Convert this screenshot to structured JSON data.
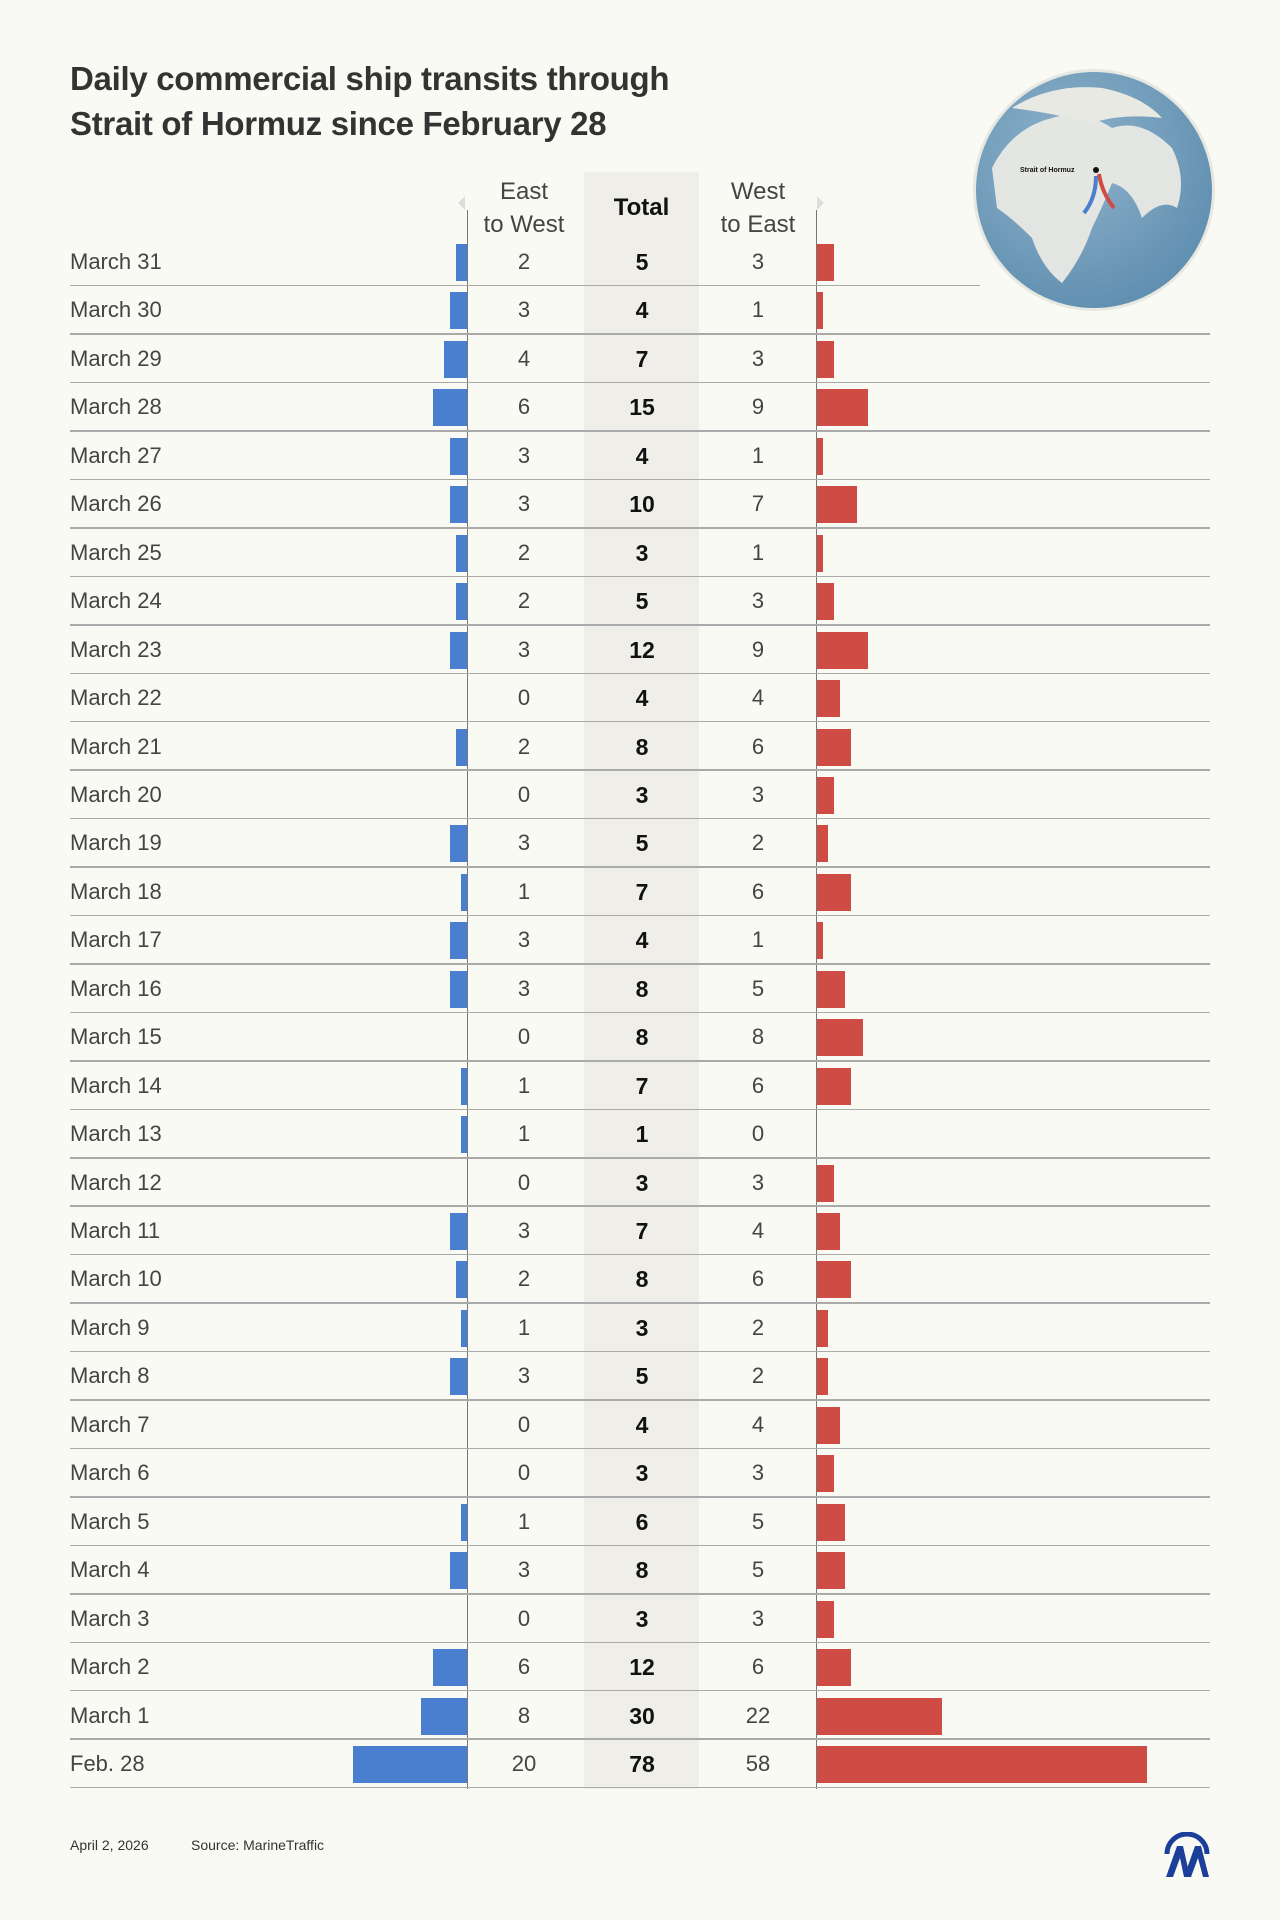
{
  "title_line1": "Daily commercial ship transits through",
  "title_line2": "Strait of Hormuz since February 28",
  "colors": {
    "east_to_west": "#4a7fd0",
    "west_to_east": "#cf4c45",
    "total_band": "#efeee8",
    "background": "#fafaf4"
  },
  "map_label": "Strait of Hormuz",
  "footer": {
    "date": "April 2, 2026",
    "source": "Source: MarineTraffic"
  },
  "logo": "AA",
  "chart_data": {
    "type": "bar",
    "columns": {
      "east_line1": "East",
      "east_line2": "to West",
      "total": "Total",
      "west_line1": "West",
      "west_line2": "to East"
    },
    "categories": [
      "March 31",
      "March 30",
      "March 29",
      "March 28",
      "March 27",
      "March 26",
      "March 25",
      "March 24",
      "March 23",
      "March 22",
      "March 21",
      "March 20",
      "March 19",
      "March 18",
      "March 17",
      "March 16",
      "March 15",
      "March 14",
      "March 13",
      "March 12",
      "March 11",
      "March 10",
      "March 9",
      "March 8",
      "March 7",
      "March 6",
      "March 5",
      "March 4",
      "March 3",
      "March 2",
      "March 1",
      "Feb. 28"
    ],
    "series": [
      {
        "name": "East to West",
        "values": [
          2,
          3,
          4,
          6,
          3,
          3,
          2,
          2,
          3,
          0,
          2,
          0,
          3,
          1,
          3,
          3,
          0,
          1,
          1,
          0,
          3,
          2,
          1,
          3,
          0,
          0,
          1,
          3,
          0,
          6,
          8,
          20
        ]
      },
      {
        "name": "Total",
        "values": [
          5,
          4,
          7,
          15,
          4,
          10,
          3,
          5,
          12,
          4,
          8,
          3,
          5,
          7,
          4,
          8,
          8,
          7,
          1,
          3,
          7,
          8,
          3,
          5,
          4,
          3,
          6,
          8,
          3,
          12,
          30,
          78
        ]
      },
      {
        "name": "West to East",
        "values": [
          3,
          1,
          3,
          9,
          1,
          7,
          1,
          3,
          9,
          4,
          6,
          3,
          2,
          6,
          1,
          5,
          8,
          6,
          0,
          3,
          4,
          6,
          2,
          2,
          4,
          3,
          5,
          5,
          3,
          6,
          22,
          58
        ]
      }
    ]
  }
}
